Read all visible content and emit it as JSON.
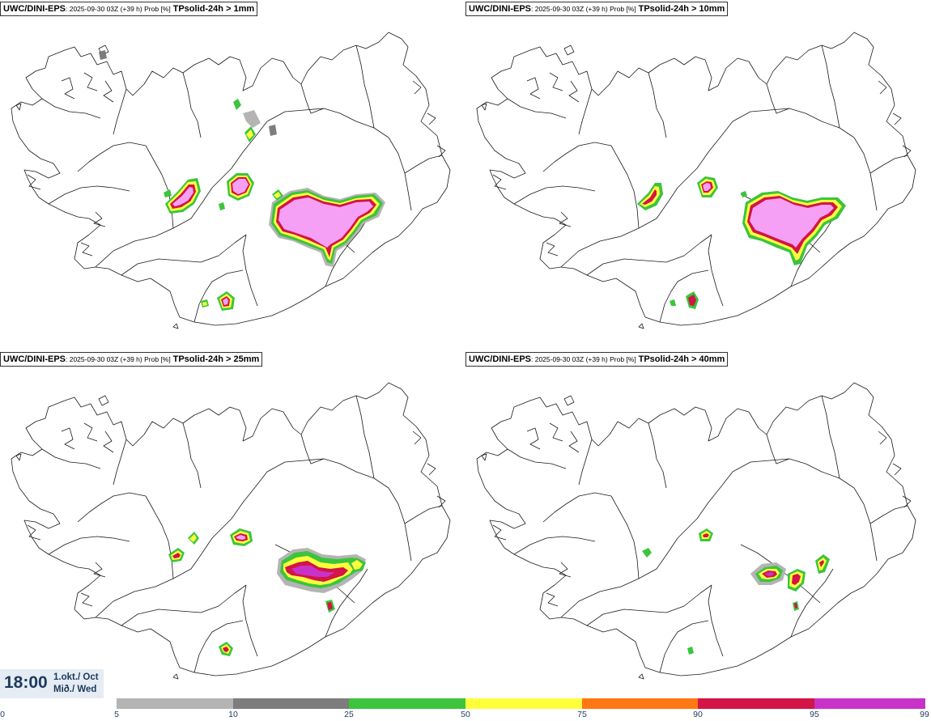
{
  "panels": [
    {
      "model": "UWC/DINI-EPS",
      "meta": ": 2025-09-30 03Z (+39 h) Prob [%]",
      "param": "TPsolid-24h > 1mm"
    },
    {
      "model": "UWC/DINI-EPS",
      "meta": ": 2025-09-30 03Z (+39 h) Prob [%]",
      "param": "TPsolid-24h > 10mm"
    },
    {
      "model": "UWC/DINI-EPS",
      "meta": ": 2025-09-30 03Z (+39 h) Prob [%]",
      "param": "TPsolid-24h > 25mm"
    },
    {
      "model": "UWC/DINI-EPS",
      "meta": ": 2025-09-30 03Z (+39 h) Prob [%]",
      "param": "TPsolid-24h > 40mm"
    }
  ],
  "valid_time": {
    "time": "18:00",
    "date_line1": "1.okt./ Oct",
    "date_line2": "Mið./ Wed"
  },
  "colorbar": {
    "ticks": [
      "0",
      "5",
      "10",
      "25",
      "50",
      "75",
      "90",
      "95",
      "99"
    ],
    "colors": [
      "#ffffff",
      "#b4b4b4",
      "#7d7d7d",
      "#3cc43c",
      "#ffff3c",
      "#ff7814",
      "#d21446",
      "#c832c8",
      "#f5a0f5"
    ]
  },
  "colors": {
    "coast": "#1a1a1a",
    "light_gray": "#b4b4b4",
    "dark_gray": "#7d7d7d",
    "green": "#3cc43c",
    "yellow": "#ffff3c",
    "orange": "#ff7814",
    "red": "#d21446",
    "magenta": "#c832c8",
    "pink": "#f5a0f5"
  }
}
